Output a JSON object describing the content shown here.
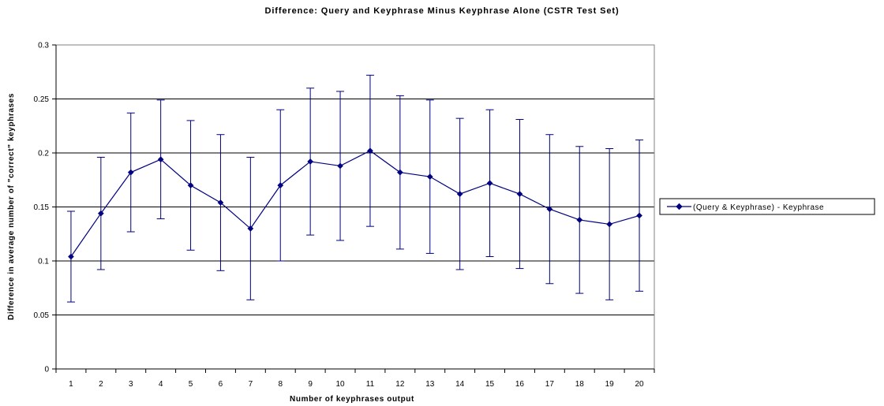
{
  "chart_data": {
    "type": "line",
    "title": "Difference: Query and Keyphrase Minus Keyphrase Alone (CSTR Test Set)",
    "xlabel": "Number of keyphrases output",
    "ylabel": "Difference in average number of \"correct\" keyphrases",
    "x": [
      1,
      2,
      3,
      4,
      5,
      6,
      7,
      8,
      9,
      10,
      11,
      12,
      13,
      14,
      15,
      16,
      17,
      18,
      19,
      20
    ],
    "ylim": [
      0,
      0.3
    ],
    "yticks": [
      0,
      0.05,
      0.1,
      0.15,
      0.2,
      0.25,
      0.3
    ],
    "ytick_labels": [
      "0",
      "0.05",
      "0.1",
      "0.15",
      "0.2",
      "0.25",
      "0.3"
    ],
    "grid": "horizontal",
    "legend_position": "right",
    "series": [
      {
        "name": "(Query & Keyphrase) - Keyphrase",
        "color": "#000080",
        "marker": "diamond",
        "values": [
          0.104,
          0.144,
          0.182,
          0.194,
          0.17,
          0.154,
          0.13,
          0.17,
          0.192,
          0.188,
          0.202,
          0.182,
          0.178,
          0.162,
          0.172,
          0.162,
          0.148,
          0.138,
          0.134,
          0.142
        ],
        "error_low": [
          0.062,
          0.092,
          0.127,
          0.139,
          0.11,
          0.091,
          0.064,
          0.1,
          0.124,
          0.119,
          0.132,
          0.111,
          0.107,
          0.092,
          0.104,
          0.093,
          0.079,
          0.07,
          0.064,
          0.072
        ],
        "error_high": [
          0.146,
          0.196,
          0.237,
          0.249,
          0.23,
          0.217,
          0.196,
          0.24,
          0.26,
          0.257,
          0.272,
          0.253,
          0.249,
          0.232,
          0.24,
          0.231,
          0.217,
          0.206,
          0.204,
          0.212
        ]
      }
    ]
  }
}
